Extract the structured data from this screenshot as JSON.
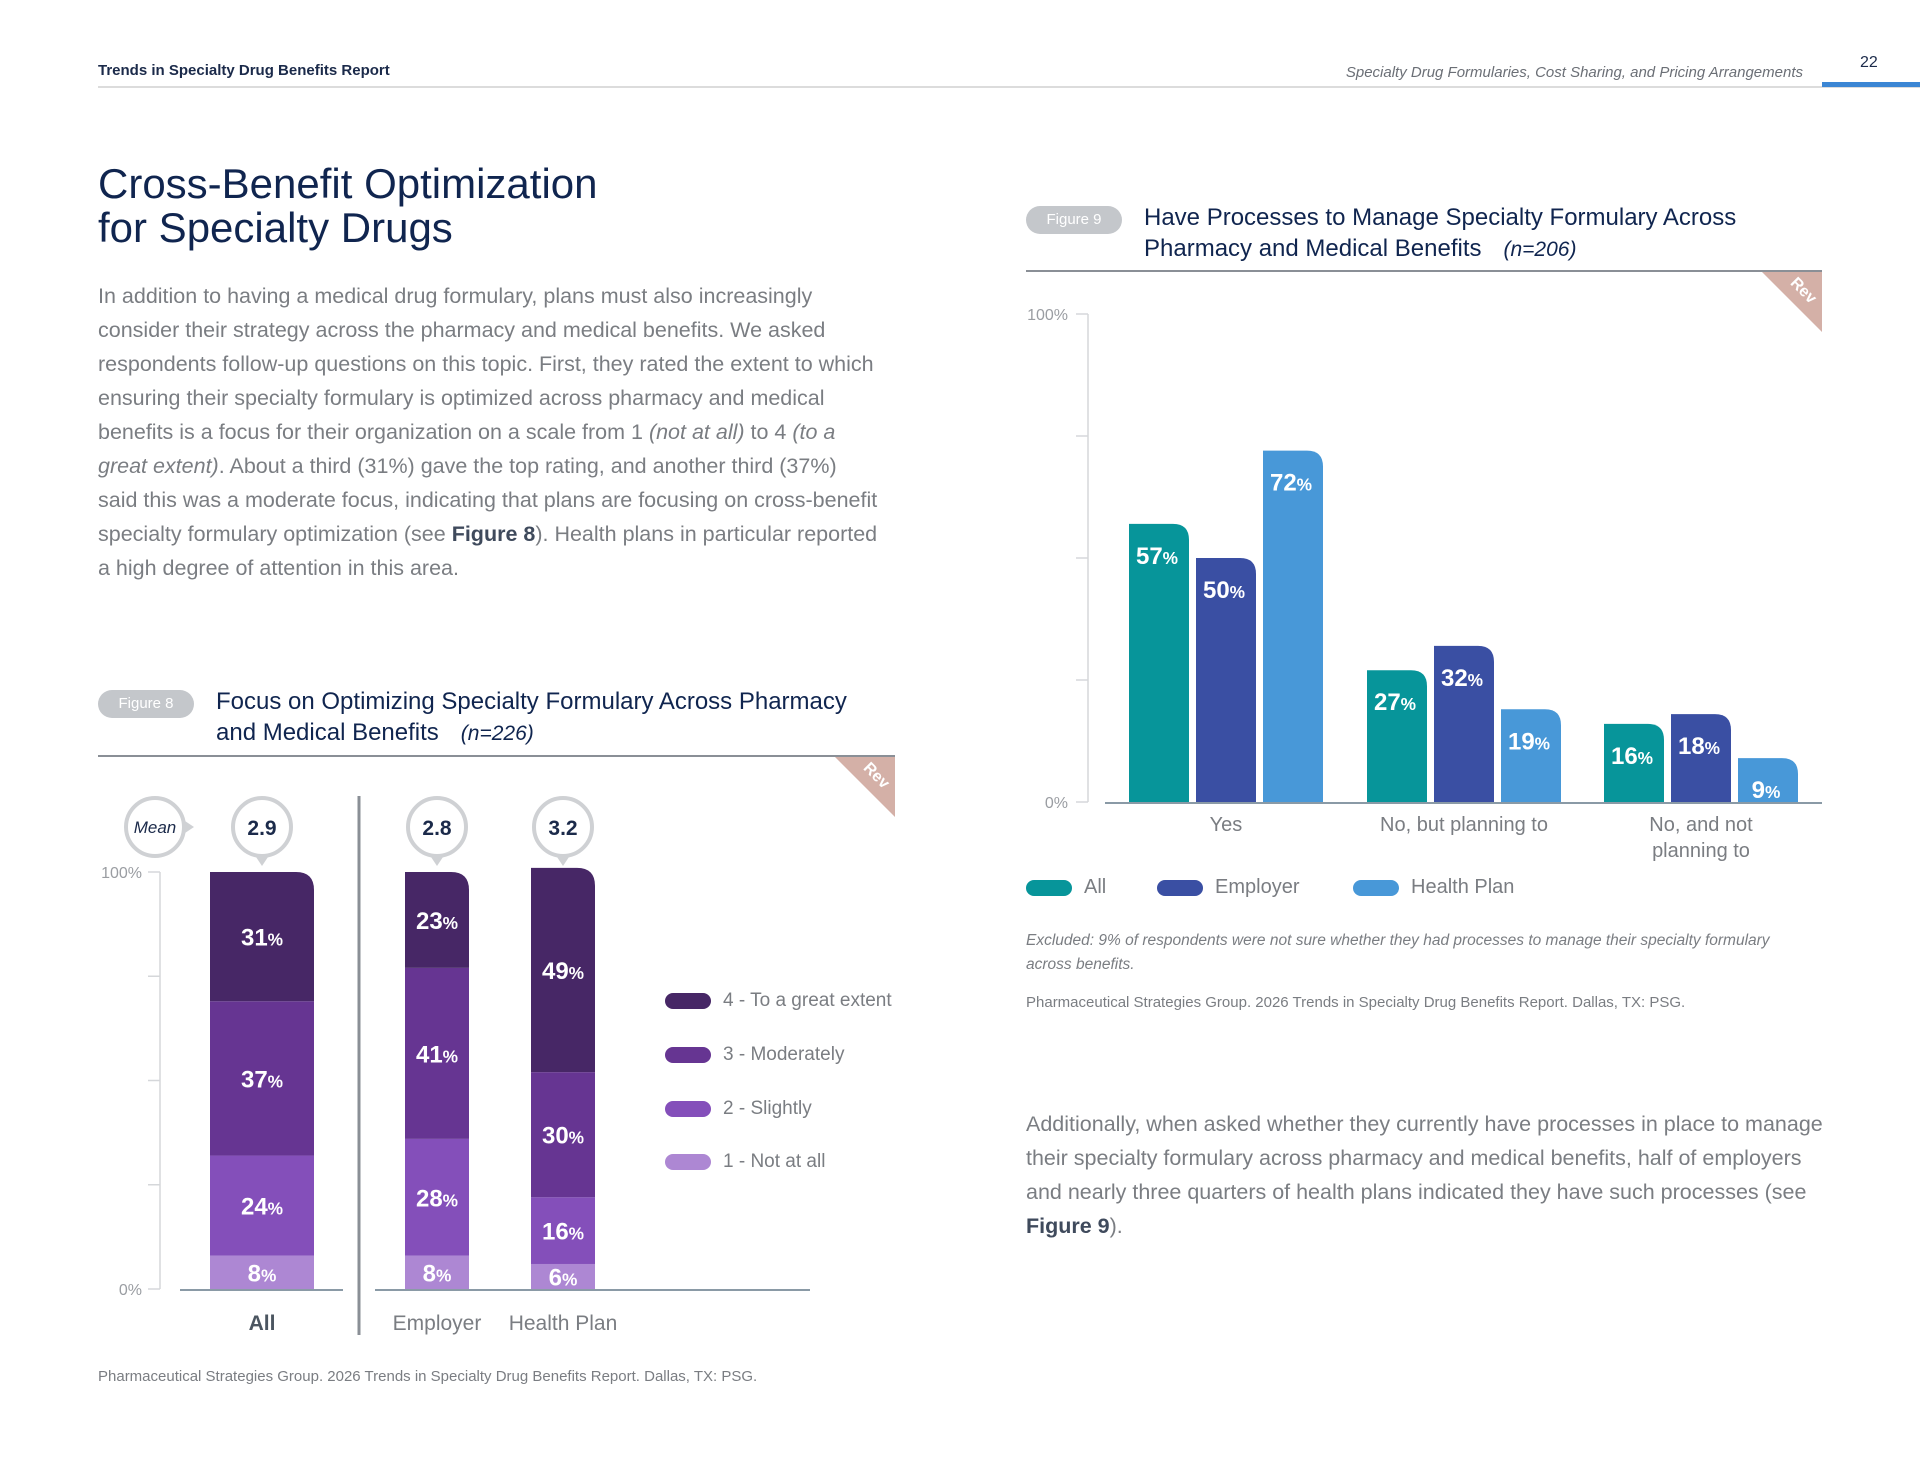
{
  "header": {
    "report_title": "Trends in Specialty Drug Benefits Report",
    "section_title": "Specialty Drug Formularies, Cost Sharing, and Pricing Arrangements",
    "page_number": "22"
  },
  "article": {
    "title_line1": "Cross-Benefit Optimization",
    "title_line2": "for Specialty Drugs",
    "paragraph1": {
      "p1": "In addition to having a medical drug formulary, plans must also increasingly consider their strategy across the pharmacy and medical benefits. We asked respondents follow-up questions on this topic. First, they rated the extent to which ensuring their specialty formulary is optimized across pharmacy and medical benefits is a focus for their organization on a scale from 1 ",
      "i1": "(not at all)",
      "p2": " to 4 ",
      "i2": "(to a great extent)",
      "p3": ". About a third (31%) gave the top rating, and another third (37%) said this was a moderate focus, indicating that plans are focusing on cross-benefit specialty formulary optimization (see ",
      "b1": "Figure 8",
      "p4": "). Health plans in particular reported a high degree of attention in this area."
    },
    "paragraph2": {
      "p1": "Additionally, when asked whether they currently have processes in place to manage their specialty formulary across pharmacy and medical benefits, half of employers and nearly three quarters of health plans indicated they have such processes (see ",
      "b1": "Figure 9",
      "p2": ")."
    }
  },
  "figure8": {
    "pill": "Figure 8",
    "title_line1": "Focus on Optimizing Specialty Formulary Across Pharmacy",
    "title_line2": "and Medical Benefits",
    "n": "(n=226)",
    "badge": "Rev",
    "source": "Pharmaceutical Strategies Group. 2026 Trends in Specialty Drug Benefits Report. Dallas, TX: PSG."
  },
  "figure9": {
    "pill": "Figure 9",
    "title_line1": "Have Processes to Manage Specialty Formulary Across",
    "title_line2": "Pharmacy and Medical Benefits",
    "n": "(n=206)",
    "badge": "Rev",
    "excluded_note": "Excluded: 9% of respondents were not sure whether they had processes to manage their specialty formulary across benefits.",
    "source": "Pharmaceutical Strategies Group. 2026 Trends in Specialty Drug Benefits Report. Dallas, TX: PSG."
  },
  "chart_data": [
    {
      "type": "bar",
      "stacked": true,
      "title": "Focus on Optimizing Specialty Formulary Across Pharmacy and Medical Benefits (n=226)",
      "categories": [
        "All",
        "Employer",
        "Health Plan"
      ],
      "mean_label": "Mean",
      "means": [
        "2.9",
        "2.8",
        "3.2"
      ],
      "series": [
        {
          "name": "1 - Not at all",
          "values": [
            8,
            8,
            6
          ],
          "color": "#ad87d3"
        },
        {
          "name": "2 - Slightly",
          "values": [
            24,
            28,
            16
          ],
          "color": "#844fba"
        },
        {
          "name": "3 - Moderately",
          "values": [
            37,
            41,
            30
          ],
          "color": "#663592"
        },
        {
          "name": "4 - To a great extent",
          "values": [
            31,
            23,
            49
          ],
          "color": "#472766"
        }
      ],
      "legend_order": [
        "4 - To a great extent",
        "3 - Moderately",
        "2 - Slightly",
        "1 - Not at all"
      ],
      "yticks": [
        "100%",
        "0%"
      ],
      "ylim": [
        0,
        100
      ],
      "legend": "right"
    },
    {
      "type": "bar",
      "title": "Have Processes to Manage Specialty Formulary Across Pharmacy and Medical Benefits (n=206)",
      "categories": [
        "Yes",
        "No, but planning to",
        "No, and not planning to"
      ],
      "category_lines": [
        [
          "Yes"
        ],
        [
          "No, but planning to"
        ],
        [
          "No, and not",
          "planning to"
        ]
      ],
      "series": [
        {
          "name": "All",
          "values": [
            57,
            27,
            16
          ],
          "color": "#07959a"
        },
        {
          "name": "Employer",
          "values": [
            50,
            32,
            18
          ],
          "color": "#3a4fa3"
        },
        {
          "name": "Health Plan",
          "values": [
            72,
            19,
            9
          ],
          "color": "#4898d8"
        }
      ],
      "yticks": [
        "100%",
        "0%"
      ],
      "ylim": [
        0,
        100
      ],
      "legend": "bottom-left"
    }
  ]
}
